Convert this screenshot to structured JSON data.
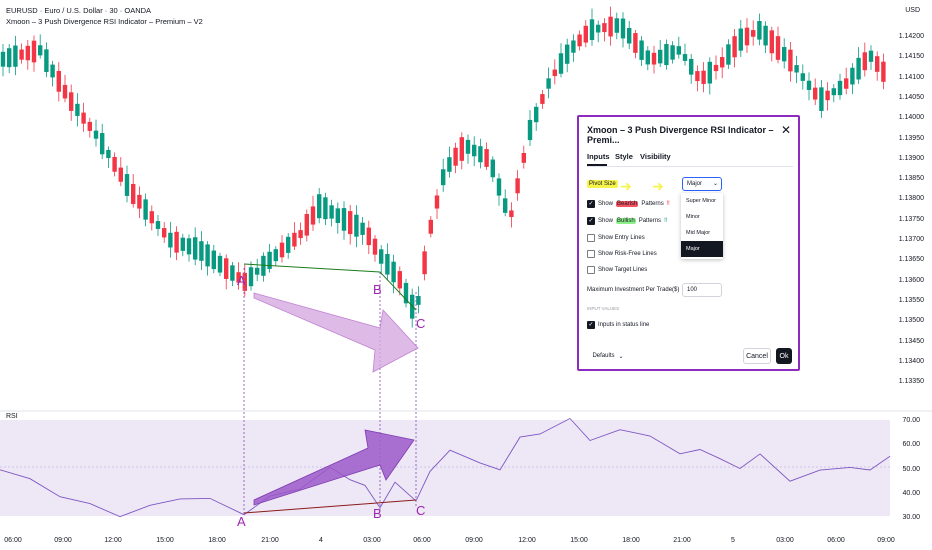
{
  "header": {
    "symbol_line": "EURUSD · Euro / U.S. Dollar · 30 · OANDA",
    "indicator_line": "Xmoon – 3 Push Divergence RSI Indicator – Premium – V2"
  },
  "price_axis": {
    "currency": "USD",
    "labels": [
      "1.14200",
      "1.14150",
      "1.14100",
      "1.14050",
      "1.14000",
      "1.13950",
      "1.13900",
      "1.13850",
      "1.13800",
      "1.13750",
      "1.13700",
      "1.13650",
      "1.13600",
      "1.13550",
      "1.13500",
      "1.13450",
      "1.13400",
      "1.13350"
    ]
  },
  "rsi_pane": {
    "label": "RSI",
    "axis_labels": [
      "70.00",
      "60.00",
      "50.00",
      "40.00",
      "30.00"
    ]
  },
  "time_axis": {
    "labels": [
      "06:00",
      "09:00",
      "12:00",
      "15:00",
      "18:00",
      "21:00",
      "4",
      "03:00",
      "06:00",
      "09:00",
      "12:00",
      "15:00",
      "18:00",
      "21:00",
      "5",
      "03:00",
      "06:00",
      "09:00"
    ]
  },
  "annotations": {
    "price_points": [
      "A",
      "B",
      "C"
    ],
    "rsi_points": [
      "A",
      "B",
      "C"
    ]
  },
  "colors": {
    "bull": "#089981",
    "bear": "#f23645",
    "rsi_line": "#7e57c2",
    "rsi_band": "#ede7f6",
    "dialog_border": "#8e2bbf",
    "marker_text": "#9c27b0"
  },
  "dialog": {
    "title": "Xmoon – 3 Push Divergence RSI Indicator – Premi...",
    "tabs": [
      "Inputs",
      "Style",
      "Visibility"
    ],
    "active_tab": "Inputs",
    "pivot_label": "Pivot Size",
    "pivot_value": "Major",
    "pivot_options": [
      "Super Minor",
      "Minor",
      "Mid Major",
      "Major"
    ],
    "show_prefix": "Show",
    "bearish_word": "Bearish",
    "bullish_word": "Bullish",
    "patterns_word": "Patterns",
    "bearish_mark": "‼",
    "bullish_mark": "‼",
    "entry_lines": "Show Entry Lines",
    "riskfree_lines": "Show Risk-Free Lines",
    "target_lines": "Show Target Lines",
    "investment_label": "Maximum Investment Per Trade($)",
    "investment_value": "100",
    "section_input_values": "INPUT VALUES",
    "inputs_status": "Inputs in status line",
    "defaults_label": "Defaults",
    "cancel_label": "Cancel",
    "ok_label": "Ok"
  }
}
